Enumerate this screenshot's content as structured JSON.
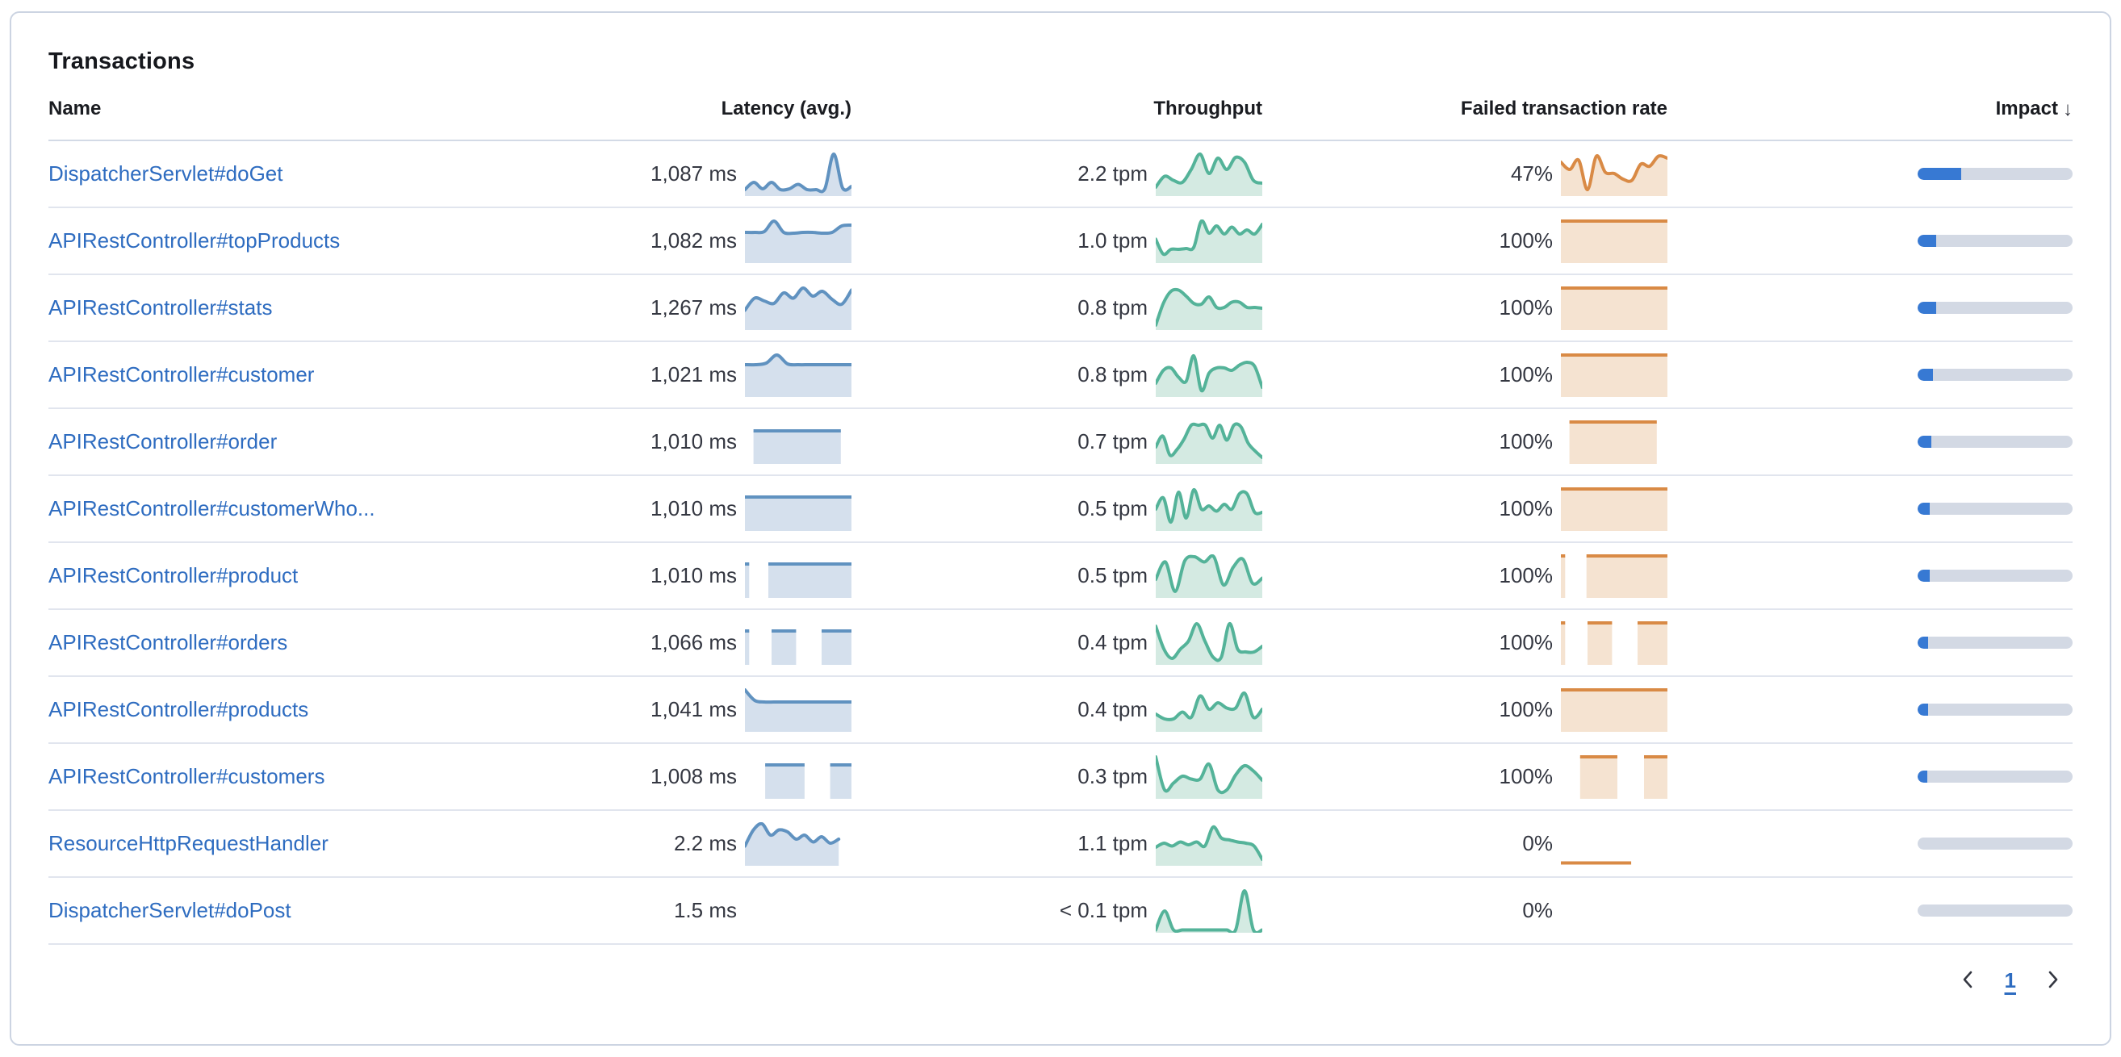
{
  "panel": {
    "title": "Transactions"
  },
  "table": {
    "columns": [
      {
        "id": "name",
        "label": "Name",
        "sortable": false
      },
      {
        "id": "latency",
        "label": "Latency (avg.)",
        "sortable": true
      },
      {
        "id": "throughput",
        "label": "Throughput",
        "sortable": true
      },
      {
        "id": "failed",
        "label": "Failed transaction rate",
        "sortable": true
      },
      {
        "id": "impact",
        "label": "Impact",
        "sortable": true,
        "sort": "descending",
        "sort_icon": "arrow-down"
      }
    ],
    "rows": [
      {
        "name": "DispatcherServlet#doGet",
        "latency": {
          "value": "1,087 ms",
          "spark": {
            "points": [
              0.12,
              0.3,
              0.14,
              0.3,
              0.12,
              0.14,
              0.25,
              0.12,
              0.12,
              0.14,
              1.0,
              0.16,
              0.2
            ]
          }
        },
        "throughput": {
          "value": "2.2 tpm",
          "spark": {
            "points": [
              0.18,
              0.45,
              0.35,
              0.3,
              0.62,
              1.0,
              0.52,
              0.9,
              0.62,
              0.92,
              0.8,
              0.35,
              0.28
            ]
          }
        },
        "failed": {
          "value": "47%",
          "spark": {
            "points": [
              0.8,
              0.62,
              0.85,
              0.12,
              0.95,
              0.55,
              0.52,
              0.38,
              0.35,
              0.75,
              0.7,
              0.95,
              0.9
            ]
          }
        },
        "impact_pct": 28
      },
      {
        "name": "APIRestController#topProducts",
        "latency": {
          "value": "1,082 ms",
          "spark": {
            "points": [
              0.72,
              0.72,
              0.74,
              1.0,
              0.72,
              0.7,
              0.72,
              0.72,
              0.7,
              0.72,
              0.88,
              0.9
            ]
          }
        },
        "throughput": {
          "value": "1.0 tpm",
          "spark": {
            "points": [
              0.55,
              0.18,
              0.3,
              0.3,
              0.32,
              0.35,
              1.0,
              0.7,
              0.88,
              0.68,
              0.85,
              0.68,
              0.78,
              0.68,
              0.92
            ]
          }
        },
        "failed": {
          "value": "100%",
          "spark": {
            "segments": [
              [
                0,
                1,
                1
              ]
            ]
          }
        },
        "impact_pct": 12
      },
      {
        "name": "APIRestController#stats",
        "latency": {
          "value": "1,267 ms",
          "spark": {
            "points": [
              0.45,
              0.75,
              0.68,
              0.62,
              0.88,
              0.75,
              1.0,
              0.8,
              0.92,
              0.72,
              0.6,
              0.95
            ]
          }
        },
        "throughput": {
          "value": "0.8 tpm",
          "spark": {
            "points": [
              0.08,
              0.62,
              0.92,
              0.95,
              0.8,
              0.62,
              0.6,
              0.78,
              0.52,
              0.52,
              0.65,
              0.65,
              0.52,
              0.52,
              0.5
            ]
          }
        },
        "failed": {
          "value": "100%",
          "spark": {
            "segments": [
              [
                0,
                1,
                1
              ]
            ]
          }
        },
        "impact_pct": 12
      },
      {
        "name": "APIRestController#customer",
        "latency": {
          "value": "1,021 ms",
          "spark": {
            "points": [
              0.76,
              0.76,
              0.8,
              1.0,
              0.78,
              0.76,
              0.76,
              0.76,
              0.76,
              0.76,
              0.76
            ]
          }
        },
        "throughput": {
          "value": "0.8 tpm",
          "spark": {
            "points": [
              0.3,
              0.62,
              0.68,
              0.45,
              0.35,
              0.98,
              0.12,
              0.55,
              0.68,
              0.68,
              0.62,
              0.75,
              0.82,
              0.72,
              0.2
            ]
          }
        },
        "failed": {
          "value": "100%",
          "spark": {
            "segments": [
              [
                0,
                1,
                1
              ]
            ]
          }
        },
        "impact_pct": 10
      },
      {
        "name": "APIRestController#order",
        "latency": {
          "value": "1,010 ms",
          "spark": {
            "segments": [
              [
                0.08,
                0.9,
                0.78
              ]
            ]
          }
        },
        "throughput": {
          "value": "0.7 tpm",
          "spark": {
            "points": [
              0.38,
              0.65,
              0.18,
              0.32,
              0.58,
              0.92,
              0.92,
              0.92,
              0.6,
              0.92,
              0.55,
              0.92,
              0.88,
              0.48,
              0.28,
              0.12
            ]
          }
        },
        "failed": {
          "value": "100%",
          "spark": {
            "segments": [
              [
                0.08,
                0.9,
                1
              ]
            ]
          }
        },
        "impact_pct": 9
      },
      {
        "name": "APIRestController#customerWho...",
        "latency": {
          "value": "1,010 ms",
          "spark": {
            "segments": [
              [
                0,
                1,
                0.8
              ]
            ]
          }
        },
        "throughput": {
          "value": "0.5 tpm",
          "spark": {
            "points": [
              0.5,
              0.78,
              0.18,
              0.92,
              0.28,
              0.98,
              0.5,
              0.58,
              0.45,
              0.62,
              0.5,
              0.88,
              0.88,
              0.42,
              0.42
            ]
          }
        },
        "failed": {
          "value": "100%",
          "spark": {
            "segments": [
              [
                0,
                1,
                1
              ]
            ]
          }
        },
        "impact_pct": 8
      },
      {
        "name": "APIRestController#product",
        "latency": {
          "value": "1,010 ms",
          "spark": {
            "segments": [
              [
                0,
                0.04,
                0.8
              ],
              [
                0.22,
                1,
                0.8
              ]
            ]
          }
        },
        "throughput": {
          "value": "0.5 tpm",
          "spark": {
            "points": [
              0.42,
              0.85,
              0.12,
              0.88,
              0.98,
              0.85,
              0.98,
              0.28,
              0.72,
              0.92,
              0.32,
              0.45
            ]
          }
        },
        "failed": {
          "value": "100%",
          "spark": {
            "segments": [
              [
                0,
                0.04,
                1
              ],
              [
                0.24,
                1,
                1
              ]
            ]
          }
        },
        "impact_pct": 8
      },
      {
        "name": "APIRestController#orders",
        "latency": {
          "value": "1,066 ms",
          "spark": {
            "segments": [
              [
                0,
                0.04,
                0.8
              ],
              [
                0.25,
                0.48,
                0.8
              ],
              [
                0.72,
                1,
                0.8
              ]
            ]
          }
        },
        "throughput": {
          "value": "0.4 tpm",
          "spark": {
            "points": [
              0.92,
              0.35,
              0.12,
              0.35,
              0.55,
              0.98,
              0.55,
              0.15,
              0.15,
              0.98,
              0.35,
              0.28,
              0.28,
              0.42
            ]
          }
        },
        "failed": {
          "value": "100%",
          "spark": {
            "segments": [
              [
                0,
                0.04,
                1
              ],
              [
                0.25,
                0.48,
                1
              ],
              [
                0.72,
                1,
                1
              ]
            ]
          }
        },
        "impact_pct": 7
      },
      {
        "name": "APIRestController#products",
        "latency": {
          "value": "1,041 ms",
          "spark": {
            "points": [
              1.0,
              0.74,
              0.7,
              0.7,
              0.7,
              0.7,
              0.7,
              0.7,
              0.7,
              0.7,
              0.7,
              0.7
            ]
          }
        },
        "throughput": {
          "value": "0.4 tpm",
          "spark": {
            "points": [
              0.4,
              0.28,
              0.28,
              0.45,
              0.32,
              0.85,
              0.52,
              0.68,
              0.55,
              0.55,
              0.92,
              0.32,
              0.52
            ]
          }
        },
        "failed": {
          "value": "100%",
          "spark": {
            "segments": [
              [
                0,
                1,
                1
              ]
            ]
          }
        },
        "impact_pct": 7
      },
      {
        "name": "APIRestController#customers",
        "latency": {
          "value": "1,008 ms",
          "spark": {
            "segments": [
              [
                0.19,
                0.56,
                0.8
              ],
              [
                0.8,
                1,
                0.8
              ]
            ]
          }
        },
        "throughput": {
          "value": "0.3 tpm",
          "spark": {
            "points": [
              1.0,
              0.18,
              0.35,
              0.52,
              0.45,
              0.45,
              0.82,
              0.18,
              0.18,
              0.55,
              0.78,
              0.65,
              0.42
            ]
          }
        },
        "failed": {
          "value": "100%",
          "spark": {
            "segments": [
              [
                0.18,
                0.53,
                1
              ],
              [
                0.78,
                1,
                1
              ]
            ]
          }
        },
        "impact_pct": 6
      },
      {
        "name": "ResourceHttpRequestHandler",
        "latency": {
          "value": "2.2 ms",
          "spark": {
            "points": [
              0.45,
              0.85,
              1.0,
              0.72,
              0.85,
              0.8,
              0.62,
              0.72,
              0.55,
              0.68,
              0.52,
              0.62
            ],
            "span": [
              0,
              0.88
            ]
          }
        },
        "throughput": {
          "value": "1.1 tpm",
          "spark": {
            "points": [
              0.42,
              0.52,
              0.45,
              0.55,
              0.48,
              0.55,
              0.45,
              0.92,
              0.65,
              0.6,
              0.55,
              0.52,
              0.45,
              0.12
            ]
          }
        },
        "failed": {
          "value": "0%",
          "spark": {
            "segments": [
              [
                0,
                0.66,
                0.03
              ]
            ],
            "no_fill": true
          }
        },
        "impact_pct": 0
      },
      {
        "name": "DispatcherServlet#doPost",
        "latency": {
          "value": "1.5 ms",
          "spark": null
        },
        "throughput": {
          "value": "< 0.1 tpm",
          "spark": {
            "points": [
              0.03,
              0.5,
              0.03,
              0.03,
              0.03,
              0.03,
              0.03,
              0.03,
              0.03,
              0.03,
              1.0,
              0.03,
              0.03
            ]
          }
        },
        "failed": {
          "value": "0%",
          "spark": null
        },
        "impact_pct": 0
      }
    ]
  },
  "pagination": {
    "prev_icon": "chevron-left",
    "current_page": "1",
    "next_icon": "chevron-right"
  },
  "colors": {
    "link": "#2e6cc0",
    "latency_line": "#6092C0",
    "latency_fill": "#d5e0ed",
    "throughput_line": "#54B399",
    "throughput_fill": "#d4eae2",
    "failed_line": "#D98A45",
    "failed_fill": "#f5e3d1",
    "impact_fill": "#3779d3",
    "impact_track": "#d3d9e4",
    "value_text": "#343741"
  }
}
